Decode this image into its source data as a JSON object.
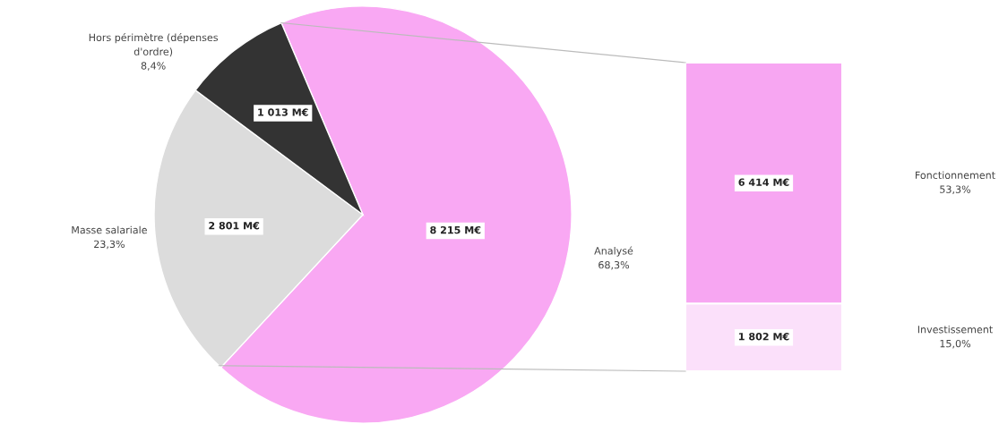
{
  "chart_data": [
    {
      "type": "pie",
      "categories": [
        "Analysé",
        "Masse salariale",
        "Hors périmètre (dépenses\nd'ordre)"
      ],
      "values": [
        8215,
        2801,
        1013
      ],
      "colors": [
        "#f9a8f3",
        "#dcdcdc",
        "#333333"
      ],
      "value_labels": [
        "8 215 M€",
        "2 801 M€",
        "1 013 M€"
      ],
      "annotations": [
        "68,3%",
        "23,3%",
        "8,4%"
      ]
    },
    {
      "type": "bar",
      "stacked": true,
      "categories": [
        null
      ],
      "series": [
        {
          "name": "Investissement",
          "color": "#fbe0fa",
          "values": [
            1802
          ],
          "value_labels": [
            "1 802 M€"
          ]
        },
        {
          "name": "Fonctionnement",
          "color": "#f7a6f2",
          "values": [
            6414
          ],
          "value_labels": [
            "6 414 M€"
          ]
        }
      ],
      "annotations": [
        "15,0%",
        "53,3%"
      ]
    }
  ]
}
